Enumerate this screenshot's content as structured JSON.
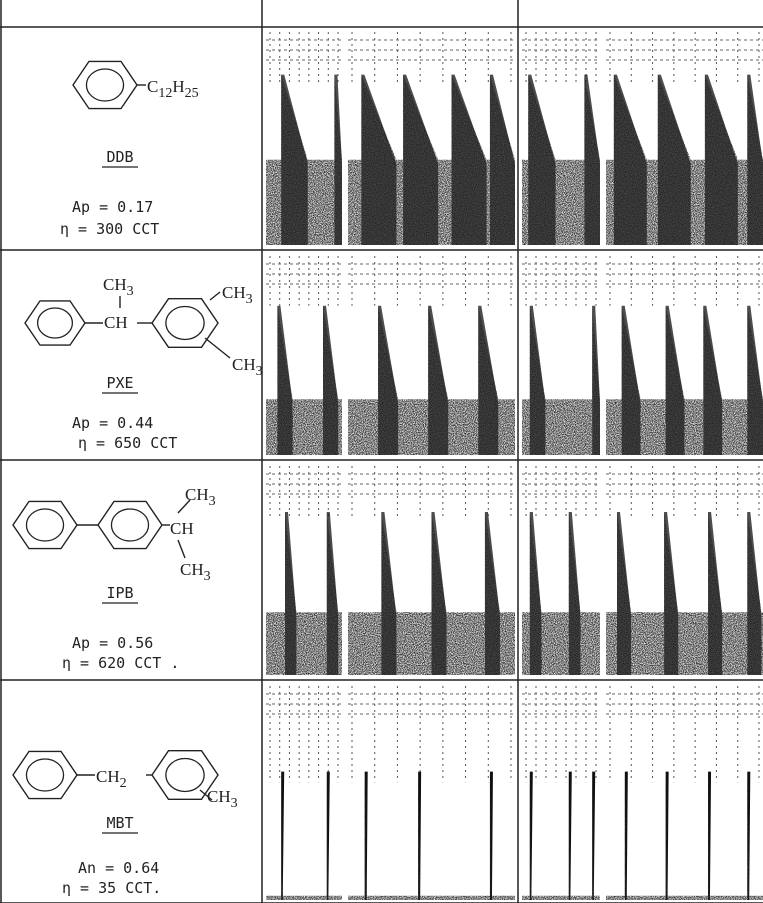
{
  "rows": [
    {
      "groups": [
        [
          {
            "t": "C"
          },
          {
            "t": "12",
            "sub": true
          },
          {
            "t": "H"
          },
          {
            "t": "25",
            "sub": true
          }
        ]
      ],
      "name": "DDB",
      "ap": "Ap = 0.17",
      "eta": "η = 300 CCT"
    },
    {
      "groups": [
        [
          {
            "t": "CH"
          },
          {
            "t": "3",
            "sub": true
          }
        ],
        [
          {
            "t": "CH"
          }
        ],
        [
          {
            "t": "CH"
          },
          {
            "t": "3",
            "sub": true
          }
        ],
        [
          {
            "t": "CH"
          },
          {
            "t": "3",
            "sub": true
          }
        ]
      ],
      "name": "PXE",
      "ap": "Ap = 0.44",
      "eta": "η = 650 CCT"
    },
    {
      "groups": [
        [
          {
            "t": "CH"
          },
          {
            "t": "3",
            "sub": true
          }
        ],
        [
          {
            "t": "CH"
          }
        ],
        [
          {
            "t": "CH"
          },
          {
            "t": "3",
            "sub": true
          }
        ]
      ],
      "name": "IPB",
      "ap": "Ap = 0.56",
      "eta": "η = 620 CCT ."
    },
    {
      "groups": [
        [
          {
            "t": "CH"
          },
          {
            "t": "2",
            "sub": true
          }
        ],
        [
          {
            "t": "CH"
          },
          {
            "t": "3",
            "sub": true
          }
        ]
      ],
      "name": "MBT",
      "ap": "An = 0.64",
      "eta": "η = 35 CCT."
    }
  ]
}
